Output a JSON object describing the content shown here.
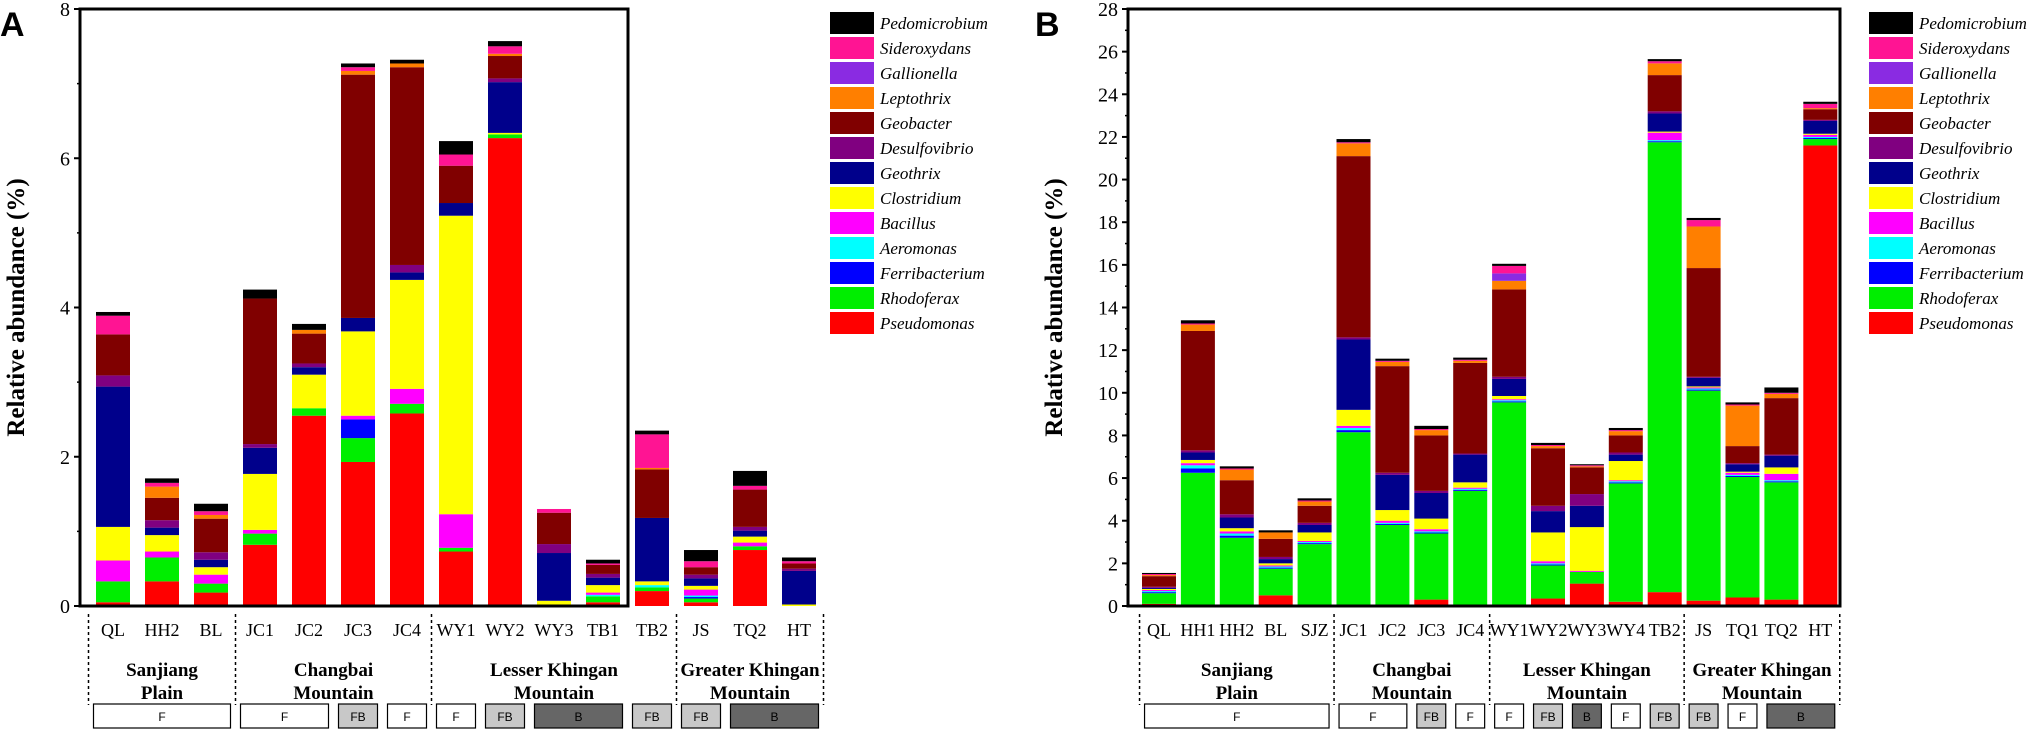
{
  "chart_data": [
    {
      "panel": "A",
      "type": "stacked_bar",
      "ylabel": "Relative abundance (%)",
      "ylim": [
        0,
        8
      ],
      "yticks": [
        0,
        2,
        4,
        6,
        8
      ],
      "categories": [
        "QL",
        "HH2",
        "BL",
        "JC1",
        "JC2",
        "JC3",
        "JC4",
        "WY1",
        "WY2",
        "WY3",
        "TB1",
        "TB2",
        "JS",
        "TQ2",
        "HT"
      ],
      "regions": [
        {
          "label": [
            "Sanjiang",
            "Plain"
          ],
          "count": 3
        },
        {
          "label": [
            "Changbai",
            "Mountain"
          ],
          "count": 4
        },
        {
          "label": [
            "Lesser Khingan",
            "Mountain"
          ],
          "count": 5
        },
        {
          "label": [
            "Greater Khingan",
            "Mountain"
          ],
          "count": 3
        }
      ],
      "conditions": [
        {
          "label": "F",
          "count": 3
        },
        {
          "label": "F",
          "count": 2
        },
        {
          "label": "FB",
          "count": 1
        },
        {
          "label": "F",
          "count": 1
        },
        {
          "label": "F",
          "count": 1
        },
        {
          "label": "FB",
          "count": 1
        },
        {
          "label": "B",
          "count": 2
        },
        {
          "label": "FB",
          "count": 1
        },
        {
          "label": "FB",
          "count": 1
        },
        {
          "label": "B",
          "count": 2
        }
      ],
      "series": [
        {
          "name": "Pseudomonas",
          "color": "#ff0000",
          "values": [
            0.05,
            0.33,
            0.18,
            0.82,
            2.55,
            1.93,
            2.58,
            0.73,
            6.27,
            0.0,
            0.05,
            0.2,
            0.05,
            0.75,
            0.0
          ]
        },
        {
          "name": "Rhodoferax",
          "color": "#00ee00",
          "values": [
            0.28,
            0.32,
            0.12,
            0.15,
            0.1,
            0.32,
            0.13,
            0.05,
            0.05,
            0.02,
            0.08,
            0.05,
            0.05,
            0.05,
            0.0
          ]
        },
        {
          "name": "Ferribacterium",
          "color": "#0000ff",
          "values": [
            0.0,
            0.0,
            0.0,
            0.0,
            0.0,
            0.25,
            0.0,
            0.0,
            0.0,
            0.0,
            0.0,
            0.0,
            0.02,
            0.0,
            0.0
          ]
        },
        {
          "name": "Aeromonas",
          "color": "#00ffff",
          "values": [
            0.0,
            0.0,
            0.0,
            0.0,
            0.0,
            0.0,
            0.0,
            0.0,
            0.0,
            0.0,
            0.02,
            0.03,
            0.02,
            0.0,
            0.0
          ]
        },
        {
          "name": "Bacillus",
          "color": "#ff00ff",
          "values": [
            0.28,
            0.08,
            0.12,
            0.05,
            0.0,
            0.05,
            0.2,
            0.45,
            0.0,
            0.0,
            0.03,
            0.0,
            0.08,
            0.05,
            0.0
          ]
        },
        {
          "name": "Clostridium",
          "color": "#ffff00",
          "values": [
            0.45,
            0.22,
            0.1,
            0.75,
            0.45,
            1.13,
            1.46,
            4.0,
            0.02,
            0.05,
            0.1,
            0.05,
            0.05,
            0.08,
            0.02
          ]
        },
        {
          "name": "Geothrix",
          "color": "#00008b",
          "values": [
            1.88,
            0.1,
            0.1,
            0.35,
            0.1,
            0.18,
            0.1,
            0.17,
            0.68,
            0.64,
            0.1,
            0.85,
            0.1,
            0.08,
            0.45
          ]
        },
        {
          "name": "Desulfovibrio",
          "color": "#800080",
          "values": [
            0.15,
            0.1,
            0.1,
            0.05,
            0.05,
            0.0,
            0.1,
            0.0,
            0.05,
            0.12,
            0.05,
            0.0,
            0.05,
            0.05,
            0.03
          ]
        },
        {
          "name": "Geobacter",
          "color": "#800000",
          "values": [
            0.55,
            0.3,
            0.45,
            1.95,
            0.4,
            3.26,
            2.65,
            0.5,
            0.3,
            0.42,
            0.12,
            0.65,
            0.1,
            0.5,
            0.07
          ]
        },
        {
          "name": "Leptothrix",
          "color": "#ff7f00",
          "values": [
            0.0,
            0.15,
            0.05,
            0.0,
            0.05,
            0.05,
            0.05,
            0.0,
            0.03,
            0.0,
            0.0,
            0.02,
            0.0,
            0.0,
            0.0
          ]
        },
        {
          "name": "Gallionella",
          "color": "#8a2be2",
          "values": [
            0.0,
            0.0,
            0.0,
            0.0,
            0.0,
            0.0,
            0.0,
            0.0,
            0.0,
            0.0,
            0.0,
            0.0,
            0.0,
            0.0,
            0.0
          ]
        },
        {
          "name": "Sideroxydans",
          "color": "#ff1493",
          "values": [
            0.25,
            0.05,
            0.05,
            0.0,
            0.0,
            0.05,
            0.0,
            0.15,
            0.1,
            0.05,
            0.02,
            0.45,
            0.08,
            0.05,
            0.03
          ]
        },
        {
          "name": "Pedomicrobium",
          "color": "#000000",
          "values": [
            0.05,
            0.06,
            0.1,
            0.12,
            0.08,
            0.05,
            0.05,
            0.18,
            0.07,
            0.0,
            0.05,
            0.05,
            0.15,
            0.2,
            0.05
          ]
        }
      ]
    },
    {
      "panel": "B",
      "type": "stacked_bar",
      "ylabel": "Relative abundance (%)",
      "ylim": [
        0,
        28
      ],
      "yticks": [
        0,
        2,
        4,
        6,
        8,
        10,
        12,
        14,
        16,
        18,
        20,
        22,
        24,
        26,
        28
      ],
      "categories": [
        "QL",
        "HH1",
        "HH2",
        "BL",
        "SJZ",
        "JC1",
        "JC2",
        "JC3",
        "JC4",
        "WY1",
        "WY2",
        "WY3",
        "WY4",
        "TB2",
        "JS",
        "TQ1",
        "TQ2",
        "HT"
      ],
      "regions": [
        {
          "label": [
            "Sanjiang",
            "Plain"
          ],
          "count": 5
        },
        {
          "label": [
            "Changbai",
            "Mountain"
          ],
          "count": 4
        },
        {
          "label": [
            "Lesser Khingan",
            "Mountain"
          ],
          "count": 5
        },
        {
          "label": [
            "Greater Khingan",
            "Mountain"
          ],
          "count": 4
        }
      ],
      "conditions": [
        {
          "label": "F",
          "count": 5
        },
        {
          "label": "F",
          "count": 2
        },
        {
          "label": "FB",
          "count": 1
        },
        {
          "label": "F",
          "count": 1
        },
        {
          "label": "F",
          "count": 1
        },
        {
          "label": "FB",
          "count": 1
        },
        {
          "label": "B",
          "count": 1
        },
        {
          "label": "F",
          "count": 1
        },
        {
          "label": "FB",
          "count": 1
        },
        {
          "label": "FB",
          "count": 1
        },
        {
          "label": "F",
          "count": 1
        },
        {
          "label": "B",
          "count": 2
        }
      ],
      "series": [
        {
          "name": "Pseudomonas",
          "color": "#ff0000",
          "values": [
            0.1,
            0.05,
            0.05,
            0.5,
            0.05,
            0.05,
            0.05,
            0.3,
            0.05,
            0.05,
            0.35,
            1.05,
            0.2,
            0.65,
            0.25,
            0.4,
            0.3,
            21.6
          ]
        },
        {
          "name": "Rhodoferax",
          "color": "#00ee00",
          "values": [
            0.5,
            6.2,
            3.15,
            1.25,
            2.85,
            8.1,
            3.75,
            3.1,
            5.35,
            9.5,
            1.55,
            0.55,
            5.55,
            21.1,
            9.85,
            5.65,
            5.5,
            0.3
          ]
        },
        {
          "name": "Ferribacterium",
          "color": "#0000ff",
          "values": [
            0.05,
            0.2,
            0.1,
            0.05,
            0.05,
            0.1,
            0.05,
            0.05,
            0.05,
            0.05,
            0.05,
            0.0,
            0.05,
            0.05,
            0.05,
            0.05,
            0.05,
            0.05
          ]
        },
        {
          "name": "Aeromonas",
          "color": "#00ffff",
          "values": [
            0.05,
            0.15,
            0.1,
            0.05,
            0.05,
            0.1,
            0.05,
            0.05,
            0.05,
            0.05,
            0.05,
            0.0,
            0.05,
            0.05,
            0.05,
            0.05,
            0.05,
            0.05
          ]
        },
        {
          "name": "Bacillus",
          "color": "#ff00ff",
          "values": [
            0.05,
            0.1,
            0.1,
            0.05,
            0.05,
            0.1,
            0.1,
            0.1,
            0.05,
            0.05,
            0.1,
            0.05,
            0.05,
            0.35,
            0.05,
            0.1,
            0.3,
            0.1
          ]
        },
        {
          "name": "Clostridium",
          "color": "#ffff00",
          "values": [
            0.05,
            0.15,
            0.15,
            0.1,
            0.4,
            0.75,
            0.5,
            0.5,
            0.25,
            0.15,
            1.35,
            2.05,
            0.9,
            0.05,
            0.05,
            0.05,
            0.3,
            0.05
          ]
        },
        {
          "name": "Geothrix",
          "color": "#00008b",
          "values": [
            0.05,
            0.35,
            0.5,
            0.2,
            0.35,
            3.3,
            1.65,
            1.2,
            1.3,
            0.8,
            1.0,
            1.0,
            0.3,
            0.85,
            0.4,
            0.35,
            0.55,
            0.6
          ]
        },
        {
          "name": "Desulfovibrio",
          "color": "#800080",
          "values": [
            0.05,
            0.1,
            0.15,
            0.1,
            0.1,
            0.1,
            0.1,
            0.1,
            0.05,
            0.1,
            0.25,
            0.55,
            0.1,
            0.1,
            0.05,
            0.05,
            0.05,
            0.05
          ]
        },
        {
          "name": "Geobacter",
          "color": "#800000",
          "values": [
            0.5,
            5.6,
            1.6,
            0.85,
            0.8,
            8.5,
            5.0,
            2.6,
            4.25,
            4.1,
            2.7,
            1.25,
            0.8,
            1.7,
            5.1,
            0.8,
            2.65,
            0.5
          ]
        },
        {
          "name": "Leptothrix",
          "color": "#ff7f00",
          "values": [
            0.05,
            0.3,
            0.5,
            0.3,
            0.2,
            0.6,
            0.2,
            0.25,
            0.1,
            0.4,
            0.1,
            0.05,
            0.2,
            0.55,
            1.95,
            1.9,
            0.2,
            0.05
          ]
        },
        {
          "name": "Gallionella",
          "color": "#8a2be2",
          "values": [
            0.0,
            0.0,
            0.0,
            0.0,
            0.0,
            0.0,
            0.0,
            0.0,
            0.0,
            0.35,
            0.0,
            0.0,
            0.0,
            0.0,
            0.0,
            0.0,
            0.0,
            0.0
          ]
        },
        {
          "name": "Sideroxydans",
          "color": "#ff1493",
          "values": [
            0.05,
            0.05,
            0.05,
            0.0,
            0.05,
            0.05,
            0.05,
            0.05,
            0.05,
            0.35,
            0.05,
            0.05,
            0.05,
            0.1,
            0.3,
            0.05,
            0.05,
            0.2
          ]
        },
        {
          "name": "Pedomicrobium",
          "color": "#000000",
          "values": [
            0.05,
            0.15,
            0.1,
            0.1,
            0.1,
            0.15,
            0.1,
            0.15,
            0.1,
            0.1,
            0.1,
            0.05,
            0.1,
            0.1,
            0.1,
            0.1,
            0.25,
            0.1
          ]
        }
      ]
    }
  ]
}
